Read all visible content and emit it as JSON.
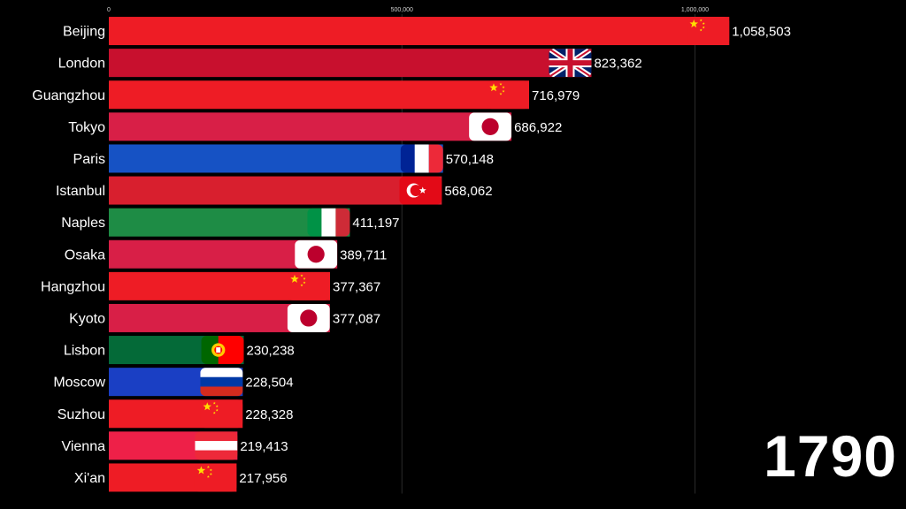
{
  "chart_data": {
    "type": "bar",
    "orientation": "horizontal",
    "year": "1790",
    "x_ticks": [
      {
        "value": 0,
        "label": "0"
      },
      {
        "value": 500000,
        "label": "500,000"
      },
      {
        "value": 1000000,
        "label": "1,000,000"
      }
    ],
    "xlim": [
      0,
      1080000
    ],
    "grid": true,
    "categories": [
      "Beijing",
      "London",
      "Guangzhou",
      "Tokyo",
      "Paris",
      "Istanbul",
      "Naples",
      "Osaka",
      "Hangzhou",
      "Kyoto",
      "Lisbon",
      "Moscow",
      "Suzhou",
      "Vienna",
      "Xi'an"
    ],
    "values": [
      1058503,
      823362,
      716979,
      686922,
      570148,
      568062,
      411197,
      389711,
      377367,
      377087,
      230238,
      228504,
      228328,
      219413,
      217956
    ],
    "value_labels": [
      "1,058,503",
      "823,362",
      "716,979",
      "686,922",
      "570,148",
      "568,062",
      "411,197",
      "389,711",
      "377,367",
      "377,087",
      "230,238",
      "228,504",
      "228,328",
      "219,413",
      "217,956"
    ],
    "bar_colors": [
      "#ee1c25",
      "#c8102e",
      "#ee1c25",
      "#d81f47",
      "#1652c4",
      "#d81f2e",
      "#1e8c45",
      "#d81f47",
      "#ee1c25",
      "#d81f47",
      "#046a38",
      "#1a3fc4",
      "#ee1c25",
      "#ee2048",
      "#ee1c25"
    ],
    "flags": [
      "china-flag",
      "uk-flag",
      "china-flag",
      "japan-flag",
      "france-flag",
      "turkey-flag",
      "italy-flag",
      "japan-flag",
      "china-flag",
      "japan-flag",
      "portugal-flag",
      "russia-flag",
      "china-flag",
      "austria-flag",
      "china-flag"
    ]
  },
  "colors": {
    "background": "#000000",
    "text": "#ffffff",
    "tick_text": "#cfcfcf",
    "grid": "#2a2a2a"
  }
}
